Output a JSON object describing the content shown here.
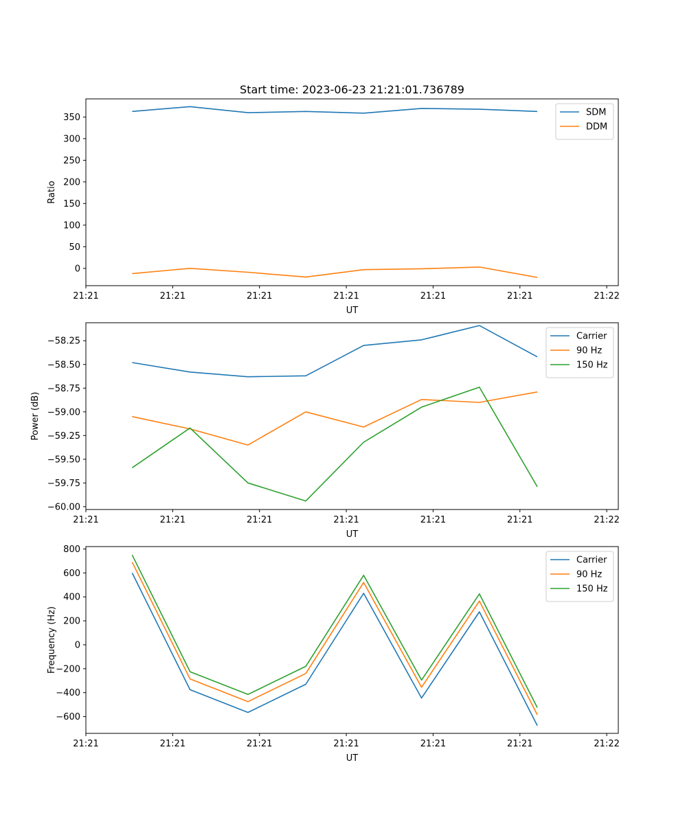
{
  "title": "Start time: 2023-06-23 21:21:01.736789",
  "chart_data": [
    {
      "type": "line",
      "title": "Start time: 2023-06-23 21:21:01.736789",
      "xlabel": "UT",
      "ylabel": "Ratio",
      "x": [
        1,
        2,
        3,
        4,
        5,
        6,
        7,
        8
      ],
      "xlim": [
        0.2,
        9.4
      ],
      "ylim": [
        -40,
        392
      ],
      "xticks": [
        0.2,
        1.7,
        3.2,
        4.7,
        6.2,
        7.7,
        9.2
      ],
      "xtick_labels": [
        "21:21",
        "21:21",
        "21:21",
        "21:21",
        "21:21",
        "21:21",
        "21:22"
      ],
      "yticks": [
        0,
        50,
        100,
        150,
        200,
        250,
        300,
        350
      ],
      "ytick_labels": [
        "0",
        "50",
        "100",
        "150",
        "200",
        "250",
        "300",
        "350"
      ],
      "legend_position": "top-right",
      "series": [
        {
          "name": "SDM",
          "color": "#1f77b4",
          "values": [
            363,
            374,
            360,
            363,
            359,
            370,
            368,
            363
          ]
        },
        {
          "name": "DDM",
          "color": "#ff7f0e",
          "values": [
            -12,
            0,
            -9,
            -20,
            -3,
            -1,
            3,
            -21
          ]
        }
      ]
    },
    {
      "type": "line",
      "xlabel": "UT",
      "ylabel": "Power (dB)",
      "x": [
        1,
        2,
        3,
        4,
        5,
        6,
        7,
        8
      ],
      "xlim": [
        0.2,
        9.4
      ],
      "ylim": [
        -60.03,
        -58.06
      ],
      "xticks": [
        0.2,
        1.7,
        3.2,
        4.7,
        6.2,
        7.7,
        9.2
      ],
      "xtick_labels": [
        "21:21",
        "21:21",
        "21:21",
        "21:21",
        "21:21",
        "21:21",
        "21:22"
      ],
      "yticks": [
        -60.0,
        -59.75,
        -59.5,
        -59.25,
        -59.0,
        -58.75,
        -58.5,
        -58.25
      ],
      "ytick_labels": [
        "−60.00",
        "−59.75",
        "−59.50",
        "−59.25",
        "−59.00",
        "−58.75",
        "−58.50",
        "−58.25"
      ],
      "legend_position": "top-right",
      "series": [
        {
          "name": "Carrier",
          "color": "#1f77b4",
          "values": [
            -58.48,
            -58.58,
            -58.63,
            -58.62,
            -58.3,
            -58.24,
            -58.09,
            -58.42
          ]
        },
        {
          "name": "90 Hz",
          "color": "#ff7f0e",
          "values": [
            -59.05,
            -59.18,
            -59.35,
            -59.0,
            -59.16,
            -58.87,
            -58.9,
            -58.79
          ]
        },
        {
          "name": "150 Hz",
          "color": "#2ca02c",
          "values": [
            -59.59,
            -59.17,
            -59.75,
            -59.94,
            -59.32,
            -58.95,
            -58.74,
            -59.79
          ]
        }
      ]
    },
    {
      "type": "line",
      "xlabel": "UT",
      "ylabel": "Frequency (Hz)",
      "x": [
        1,
        2,
        3,
        4,
        5,
        6,
        7,
        8
      ],
      "xlim": [
        0.2,
        9.4
      ],
      "ylim": [
        -740,
        820
      ],
      "xticks": [
        0.2,
        1.7,
        3.2,
        4.7,
        6.2,
        7.7,
        9.2
      ],
      "xtick_labels": [
        "21:21",
        "21:21",
        "21:21",
        "21:21",
        "21:21",
        "21:21",
        "21:22"
      ],
      "yticks": [
        -600,
        -400,
        -200,
        0,
        200,
        400,
        600,
        800
      ],
      "ytick_labels": [
        "−600",
        "−400",
        "−200",
        "0",
        "200",
        "400",
        "600",
        "800"
      ],
      "legend_position": "top-right",
      "series": [
        {
          "name": "Carrier",
          "color": "#1f77b4",
          "values": [
            600,
            -375,
            -565,
            -330,
            430,
            -445,
            275,
            -675
          ]
        },
        {
          "name": "90 Hz",
          "color": "#ff7f0e",
          "values": [
            690,
            -285,
            -475,
            -240,
            520,
            -355,
            365,
            -585
          ]
        },
        {
          "name": "150 Hz",
          "color": "#2ca02c",
          "values": [
            750,
            -225,
            -415,
            -180,
            580,
            -295,
            425,
            -525
          ]
        }
      ]
    }
  ]
}
